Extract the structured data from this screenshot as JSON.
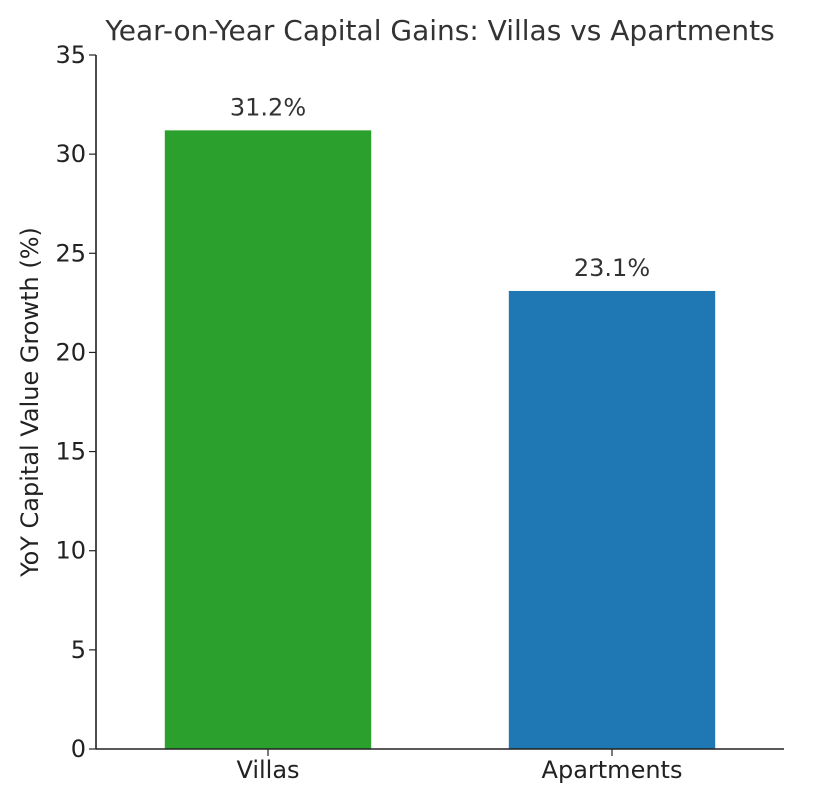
{
  "chart_data": {
    "type": "bar",
    "title": "Year-on-Year Capital Gains: Villas vs Apartments",
    "xlabel": "",
    "ylabel": "YoY Capital Value Growth (%)",
    "categories": [
      "Villas",
      "Apartments"
    ],
    "values": [
      31.2,
      23.1
    ],
    "value_labels": [
      "31.2%",
      "23.1%"
    ],
    "colors": [
      "#2ca02c",
      "#1f77b4"
    ],
    "ylim": [
      0,
      35
    ],
    "yticks": [
      0,
      5,
      10,
      15,
      20,
      25,
      30,
      35
    ],
    "grid": false,
    "legend": "none"
  }
}
